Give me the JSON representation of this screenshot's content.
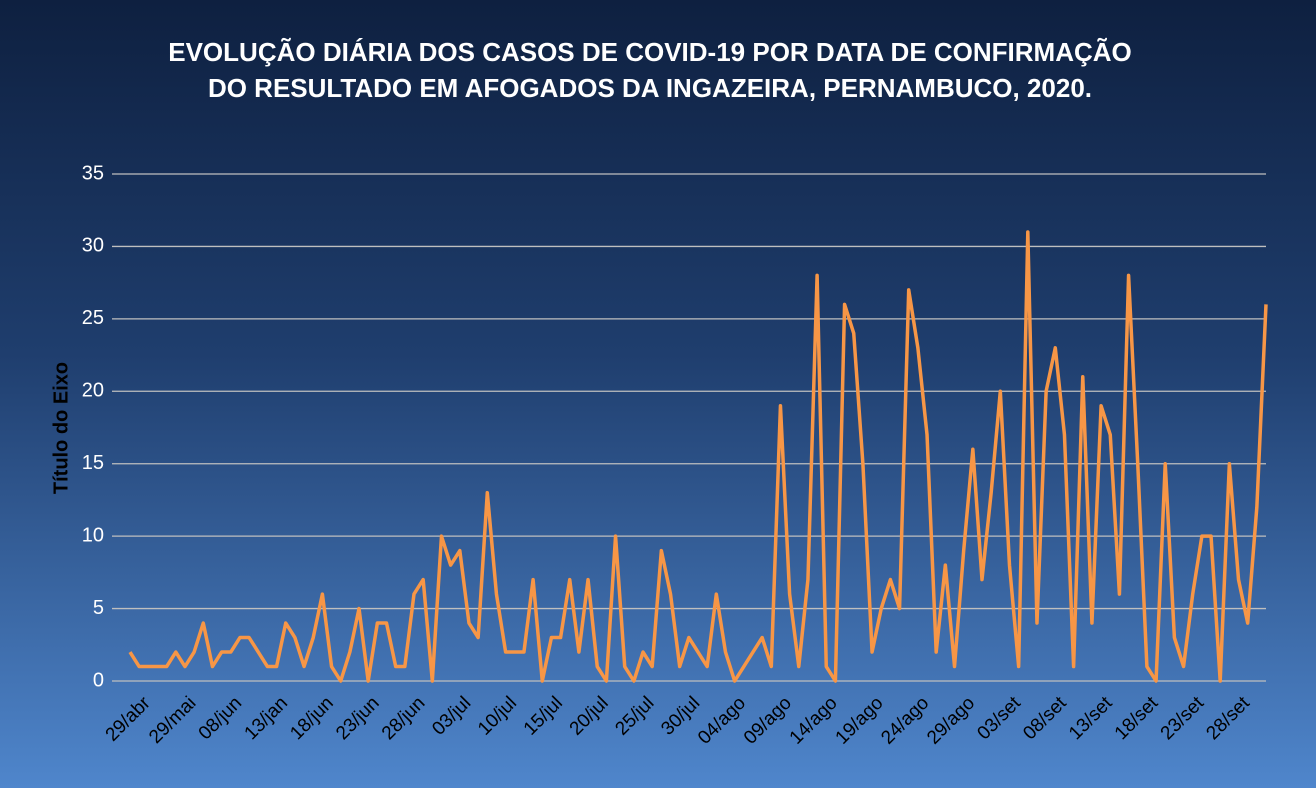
{
  "chart_data": {
    "type": "line",
    "title": "EVOLUÇÃO DIÁRIA DOS CASOS DE COVID-19 POR DATA DE CONFIRMAÇÃO DO RESULTADO EM AFOGADOS DA INGAZEIRA, PERNAMBUCO, 2020.",
    "y_label": "Título do Eixo",
    "categories": [
      "29/abr",
      null,
      null,
      null,
      null,
      "29/mai",
      null,
      null,
      null,
      null,
      "08/jun",
      null,
      null,
      null,
      null,
      "13/jan",
      null,
      null,
      null,
      null,
      "18/jun",
      null,
      null,
      null,
      null,
      "23/jun",
      null,
      null,
      null,
      null,
      "28/jun",
      null,
      null,
      null,
      null,
      "03/jul",
      null,
      null,
      null,
      null,
      "10/jul",
      null,
      null,
      null,
      null,
      "15/jul",
      null,
      null,
      null,
      null,
      "20/jul",
      null,
      null,
      null,
      null,
      "25/jul",
      null,
      null,
      null,
      null,
      "30/jul",
      null,
      null,
      null,
      null,
      "04/ago",
      null,
      null,
      null,
      null,
      "09/ago",
      null,
      null,
      null,
      null,
      "14/ago",
      null,
      null,
      null,
      null,
      "19/ago",
      null,
      null,
      null,
      null,
      "24/ago",
      null,
      null,
      null,
      null,
      "29/ago",
      null,
      null,
      null,
      null,
      "03/set",
      null,
      null,
      null,
      null,
      "08/set",
      null,
      null,
      null,
      null,
      "13/set",
      null,
      null,
      null,
      null,
      "18/set",
      null,
      null,
      null,
      null,
      "23/set",
      null,
      null,
      null,
      null,
      "28/set",
      null,
      null,
      null,
      null
    ],
    "values": [
      2,
      1,
      1,
      1,
      1,
      2,
      1,
      2,
      4,
      1,
      2,
      2,
      3,
      3,
      2,
      1,
      1,
      4,
      3,
      1,
      3,
      6,
      1,
      0,
      2,
      5,
      0,
      4,
      4,
      1,
      1,
      6,
      7,
      0,
      10,
      8,
      9,
      4,
      3,
      13,
      6,
      2,
      2,
      2,
      7,
      0,
      3,
      3,
      7,
      2,
      7,
      1,
      0,
      10,
      1,
      0,
      2,
      1,
      9,
      6,
      1,
      3,
      2,
      1,
      6,
      2,
      0,
      1,
      2,
      3,
      1,
      19,
      6,
      1,
      7,
      28,
      1,
      0,
      26,
      24,
      15,
      2,
      5,
      7,
      5,
      27,
      23,
      17,
      2,
      8,
      1,
      9,
      16,
      7,
      13,
      20,
      8,
      1,
      31,
      4,
      20,
      23,
      17,
      1,
      21,
      4,
      19,
      17,
      6,
      28,
      15,
      1,
      0,
      15,
      3,
      1,
      6,
      10,
      10,
      0,
      15,
      7,
      4,
      12,
      26
    ],
    "color": "#f79646",
    "ylim": [
      0,
      35
    ],
    "yticks": [
      0,
      5,
      10,
      15,
      20,
      25,
      30,
      35
    ],
    "grid": true
  }
}
